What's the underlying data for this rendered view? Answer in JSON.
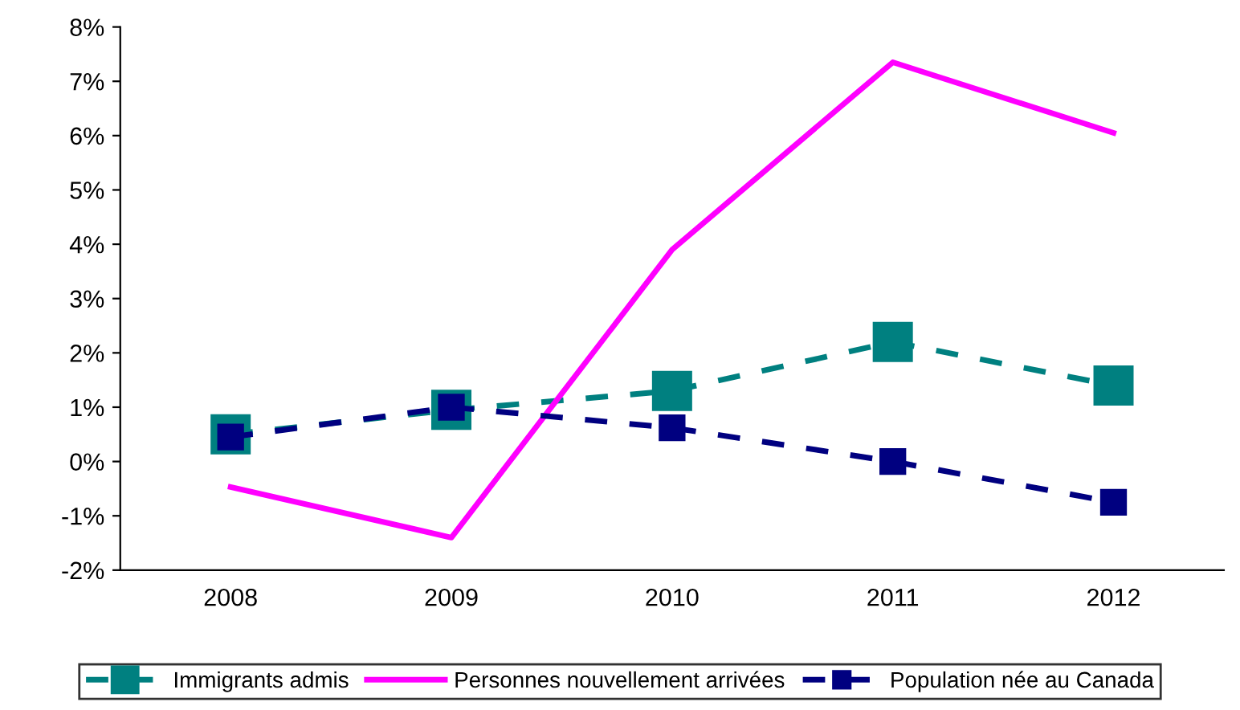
{
  "chart_data": {
    "type": "line",
    "categories": [
      "2008",
      "2009",
      "2010",
      "2011",
      "2012"
    ],
    "series": [
      {
        "name": "Immigrants admis",
        "color": "#008080",
        "values": [
          0.5,
          0.95,
          1.3,
          2.2,
          1.4
        ],
        "marker": "square",
        "line_style": "dashed"
      },
      {
        "name": "Personnes nouvellement arrivées",
        "color": "#ff00ff",
        "values": [
          -0.47,
          -1.4,
          3.9,
          7.35,
          6.05
        ],
        "marker": "none",
        "line_style": "solid"
      },
      {
        "name": "Population née au Canada",
        "color": "#000080",
        "values": [
          0.45,
          1.0,
          0.62,
          0.0,
          -0.75
        ],
        "marker": "square",
        "line_style": "dashed"
      }
    ],
    "ylim": [
      -2,
      8
    ],
    "yticks": [
      {
        "value": -2,
        "label": "-2%"
      },
      {
        "value": -1,
        "label": "-1%"
      },
      {
        "value": 0,
        "label": "0%"
      },
      {
        "value": 1,
        "label": "1%"
      },
      {
        "value": 2,
        "label": "2%"
      },
      {
        "value": 3,
        "label": "3%"
      },
      {
        "value": 4,
        "label": "4%"
      },
      {
        "value": 5,
        "label": "5%"
      },
      {
        "value": 6,
        "label": "6%"
      },
      {
        "value": 7,
        "label": "7%"
      },
      {
        "value": 8,
        "label": "8%"
      }
    ],
    "grid": false,
    "legend": "bottom"
  }
}
